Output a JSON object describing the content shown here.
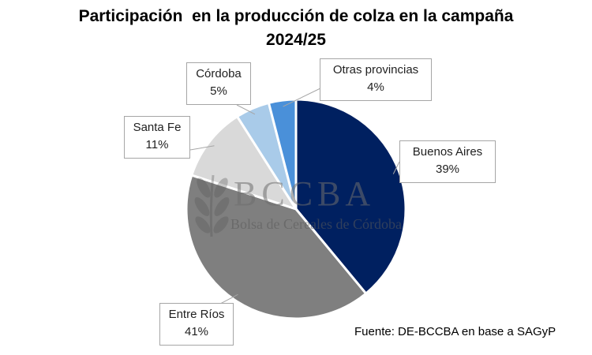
{
  "chart_data": {
    "type": "pie",
    "title_lines": [
      "Participación  en la producción de colza en la campaña",
      "2024/25"
    ],
    "slices": [
      {
        "label": "Buenos Aires",
        "value": 39,
        "display": "39%",
        "color": "#002060"
      },
      {
        "label": "Entre Ríos",
        "value": 41,
        "display": "41%",
        "color": "#7f7f7f"
      },
      {
        "label": "Santa Fe",
        "value": 11,
        "display": "11%",
        "color": "#d9d9d9"
      },
      {
        "label": "Córdoba",
        "value": 5,
        "display": "5%",
        "color": "#a9cbe9"
      },
      {
        "label": "Otras provincias",
        "value": 4,
        "display": "4%",
        "color": "#4a90d9"
      }
    ],
    "legend": "none",
    "data_labels": "callouts"
  },
  "watermark": {
    "title": "BCCBA",
    "subtitle": "Bolsa de Cereales de Córdoba"
  },
  "source": "Fuente: DE-BCCBA en base a SAGyP"
}
